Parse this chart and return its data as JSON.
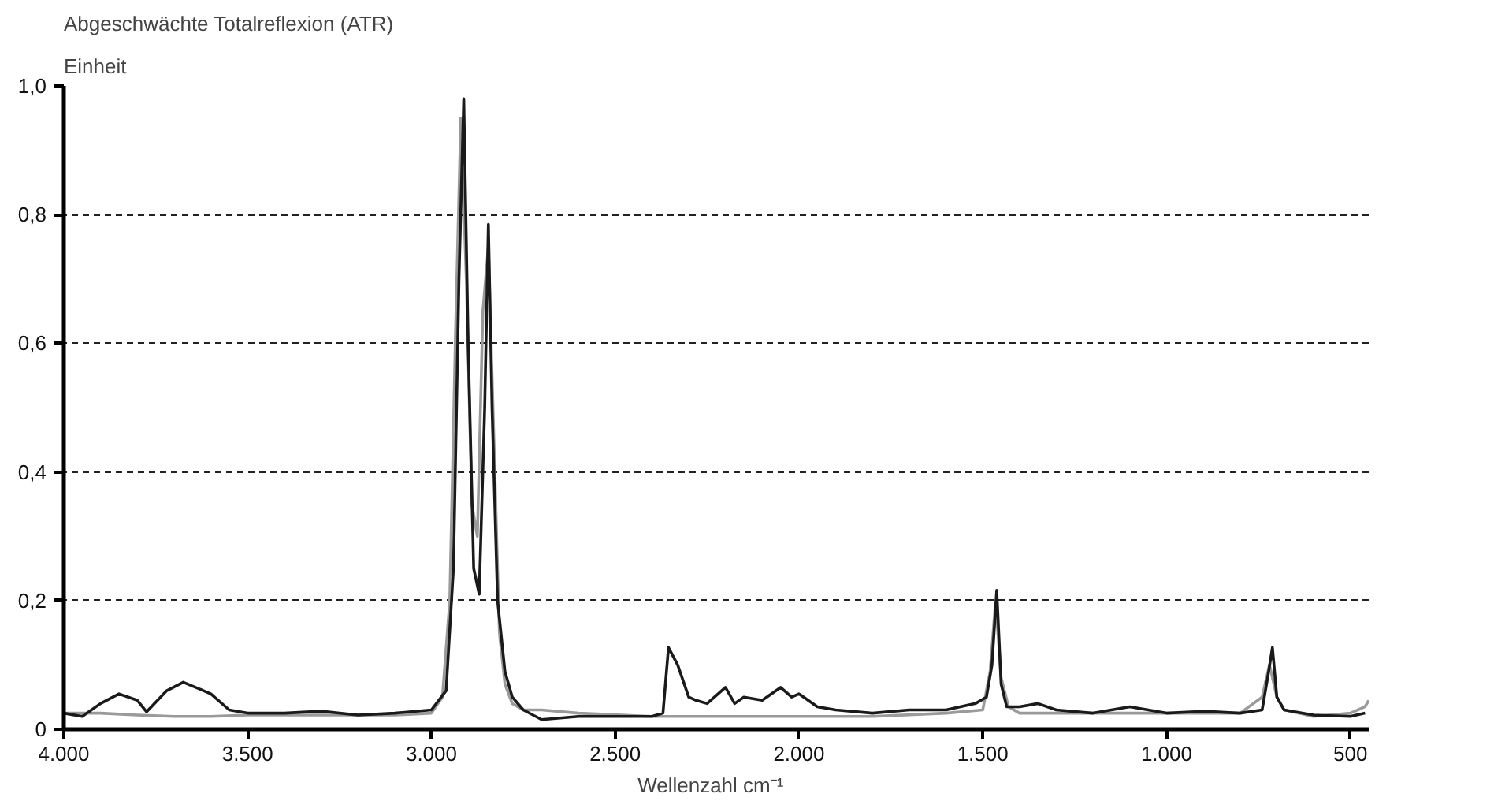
{
  "chart_data": {
    "type": "line",
    "title": "Abgeschwächte Totalreflexion (ATR)",
    "ylabel": "Einheit",
    "xlabel": "Wellenzahl   cm⁻¹",
    "xlim": [
      4000,
      450
    ],
    "ylim": [
      0,
      1.0
    ],
    "xticks": [
      {
        "value": 4000,
        "label": "4.000"
      },
      {
        "value": 3500,
        "label": "3.500"
      },
      {
        "value": 3000,
        "label": "3.000"
      },
      {
        "value": 2500,
        "label": "2.500"
      },
      {
        "value": 2000,
        "label": "2.000"
      },
      {
        "value": 1500,
        "label": "1.500"
      },
      {
        "value": 1000,
        "label": "1.000"
      },
      500
    ],
    "yticks": [
      0,
      {
        "value": 0.2,
        "label": "0,2"
      },
      {
        "value": 0.4,
        "label": "0,4"
      },
      {
        "value": 0.6,
        "label": "0,6"
      },
      {
        "value": 0.8,
        "label": "0,8"
      },
      {
        "value": 1.0,
        "label": "1,0"
      }
    ],
    "grid": "y",
    "line_style": "solid",
    "series": [
      {
        "color": "#9a9a9a",
        "x": [
          4000,
          3900,
          3800,
          3700,
          3600,
          3500,
          3300,
          3100,
          3000,
          2970,
          2950,
          2935,
          2920,
          2905,
          2890,
          2875,
          2860,
          2845,
          2830,
          2815,
          2800,
          2780,
          2750,
          2700,
          2600,
          2400,
          2300,
          2100,
          1900,
          1800,
          1600,
          1500,
          1480,
          1465,
          1450,
          1430,
          1400,
          1200,
          1000,
          800,
          740,
          720,
          700,
          680,
          600,
          500,
          460,
          450
        ],
        "values": [
          0.025,
          0.025,
          0.022,
          0.02,
          0.02,
          0.022,
          0.022,
          0.022,
          0.025,
          0.05,
          0.2,
          0.6,
          0.95,
          0.7,
          0.35,
          0.3,
          0.65,
          0.75,
          0.45,
          0.15,
          0.07,
          0.04,
          0.03,
          0.03,
          0.025,
          0.02,
          0.02,
          0.02,
          0.02,
          0.02,
          0.025,
          0.03,
          0.09,
          0.2,
          0.08,
          0.035,
          0.025,
          0.025,
          0.025,
          0.025,
          0.05,
          0.1,
          0.05,
          0.03,
          0.02,
          0.025,
          0.035,
          0.045
        ]
      },
      {
        "color": "#1a1a1a",
        "x": [
          4000,
          3950,
          3900,
          3850,
          3800,
          3775,
          3720,
          3675,
          3620,
          3600,
          3550,
          3500,
          3400,
          3300,
          3200,
          3100,
          3000,
          2960,
          2940,
          2925,
          2912,
          2900,
          2885,
          2870,
          2855,
          2845,
          2835,
          2820,
          2800,
          2780,
          2750,
          2700,
          2600,
          2500,
          2400,
          2370,
          2355,
          2330,
          2300,
          2280,
          2250,
          2200,
          2175,
          2150,
          2100,
          2050,
          2020,
          2000,
          1950,
          1900,
          1800,
          1700,
          1600,
          1520,
          1490,
          1475,
          1462,
          1450,
          1435,
          1400,
          1350,
          1300,
          1200,
          1100,
          1000,
          900,
          800,
          740,
          725,
          712,
          700,
          680,
          600,
          500,
          460
        ],
        "values": [
          0.025,
          0.02,
          0.04,
          0.055,
          0.045,
          0.027,
          0.06,
          0.073,
          0.06,
          0.055,
          0.03,
          0.025,
          0.025,
          0.028,
          0.022,
          0.025,
          0.03,
          0.06,
          0.25,
          0.7,
          0.98,
          0.6,
          0.25,
          0.21,
          0.5,
          0.785,
          0.5,
          0.2,
          0.09,
          0.05,
          0.03,
          0.015,
          0.02,
          0.02,
          0.02,
          0.025,
          0.127,
          0.1,
          0.05,
          0.045,
          0.04,
          0.065,
          0.04,
          0.05,
          0.045,
          0.065,
          0.05,
          0.055,
          0.035,
          0.03,
          0.025,
          0.03,
          0.03,
          0.04,
          0.05,
          0.1,
          0.216,
          0.07,
          0.035,
          0.035,
          0.04,
          0.03,
          0.025,
          0.035,
          0.025,
          0.028,
          0.025,
          0.03,
          0.08,
          0.127,
          0.05,
          0.03,
          0.022,
          0.02,
          0.025
        ]
      }
    ]
  }
}
